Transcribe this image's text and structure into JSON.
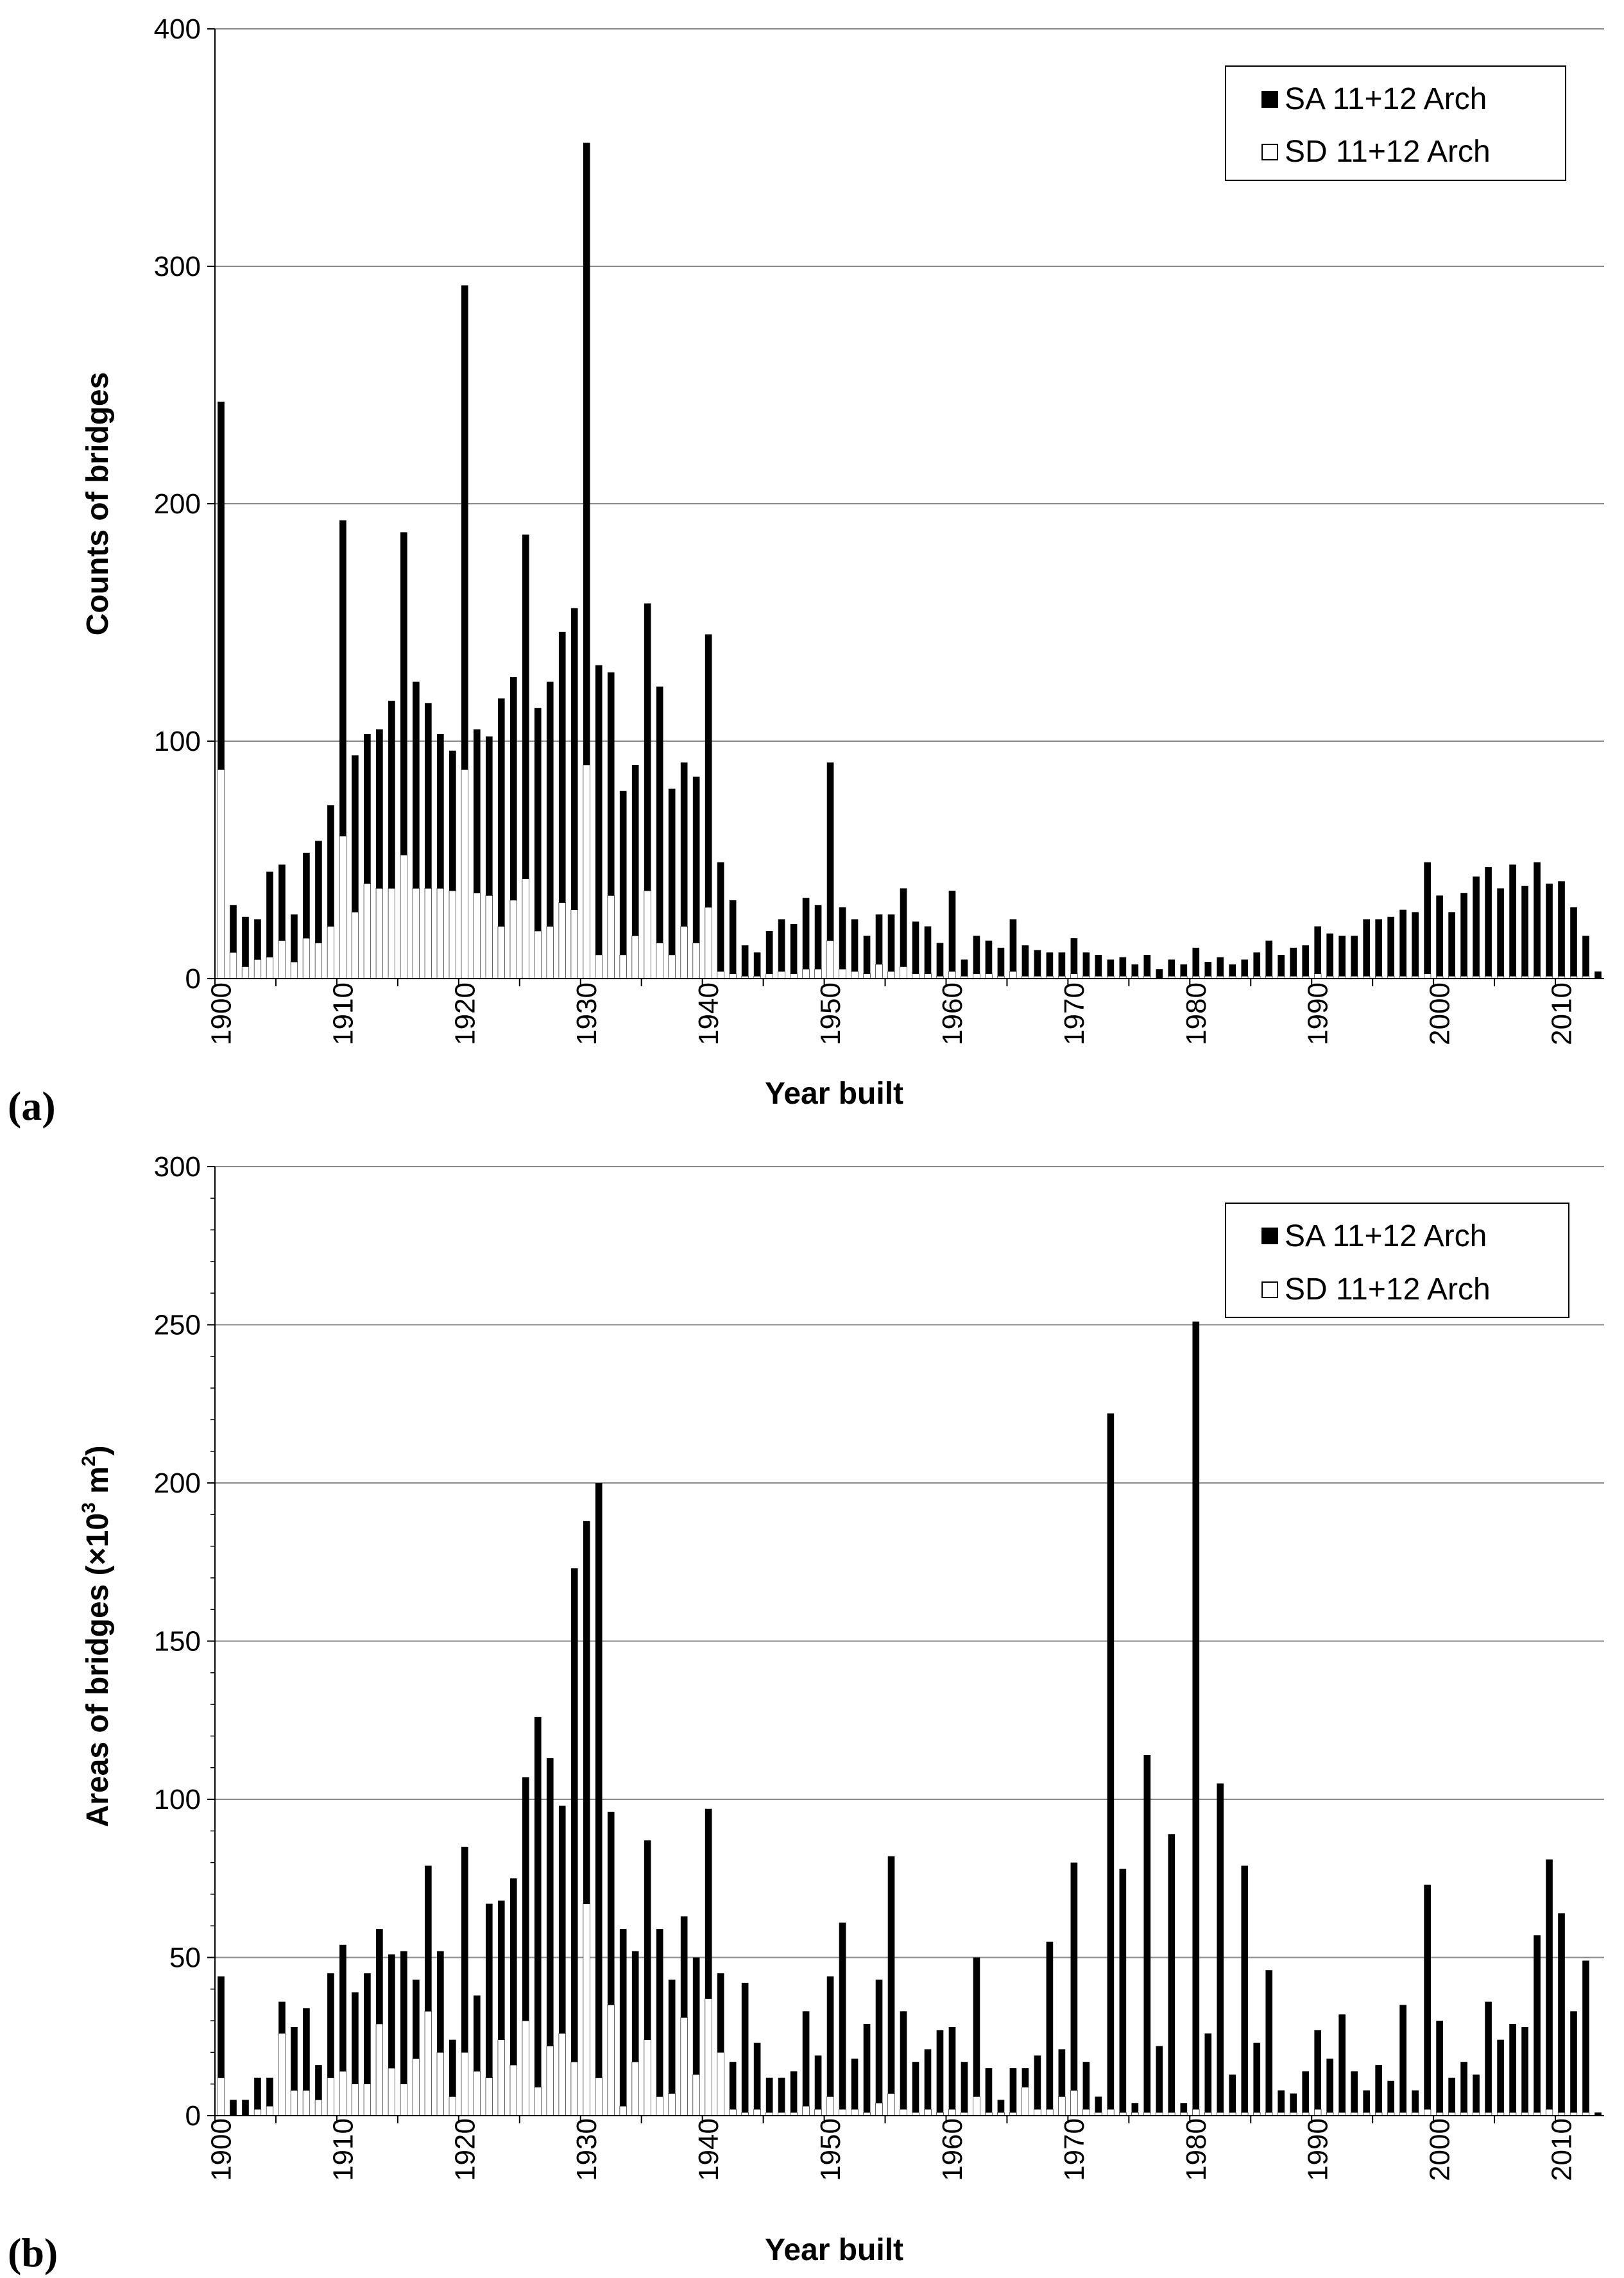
{
  "chart_data": [
    {
      "type": "bar",
      "panel_label": "(a)",
      "xlabel": "Year built",
      "ylabel": "Counts of bridges",
      "ylim": [
        0,
        400
      ],
      "yticks": [
        0,
        100,
        200,
        300,
        400
      ],
      "yticks_text": [
        "0",
        "100",
        "200",
        "300",
        "400"
      ],
      "xticks_text": [
        "1900",
        "1910",
        "1920",
        "1930",
        "1940",
        "1950",
        "1960",
        "1970",
        "1980",
        "1990",
        "2000",
        "2010"
      ],
      "legend_position": "top-right",
      "grid": "horizontal",
      "year_start": 1900,
      "series": [
        {
          "name": "SA 11+12 Arch",
          "fill": "#000000",
          "values": [
            243,
            31,
            26,
            25,
            45,
            48,
            27,
            53,
            58,
            73,
            193,
            94,
            103,
            105,
            117,
            188,
            125,
            116,
            103,
            96,
            292,
            105,
            102,
            118,
            127,
            187,
            114,
            125,
            146,
            156,
            352,
            132,
            129,
            79,
            90,
            158,
            123,
            80,
            91,
            85,
            145,
            49,
            33,
            14,
            11,
            20,
            25,
            23,
            34,
            31,
            91,
            30,
            25,
            18,
            27,
            27,
            38,
            24,
            22,
            15,
            37,
            8,
            18,
            16,
            13,
            25,
            14,
            12,
            11,
            11,
            17,
            11,
            10,
            8,
            9,
            6,
            10,
            4,
            8,
            6,
            13,
            7,
            9,
            6,
            8,
            11,
            16,
            10,
            13,
            14,
            22,
            19,
            18,
            18,
            25,
            25,
            26,
            29,
            28,
            49,
            35,
            28,
            36,
            43,
            47,
            38,
            48,
            39,
            49,
            40,
            41,
            30,
            18,
            3
          ]
        },
        {
          "name": "SD 11+12 Arch",
          "fill": "#ffffff",
          "values": [
            88,
            11,
            5,
            8,
            9,
            16,
            7,
            17,
            15,
            22,
            60,
            28,
            40,
            38,
            38,
            52,
            38,
            38,
            38,
            37,
            88,
            36,
            35,
            22,
            33,
            42,
            20,
            22,
            32,
            29,
            90,
            10,
            35,
            10,
            18,
            37,
            15,
            10,
            22,
            15,
            30,
            3,
            2,
            1,
            1,
            2,
            3,
            2,
            4,
            4,
            16,
            4,
            3,
            2,
            6,
            3,
            5,
            2,
            2,
            1,
            3,
            1,
            2,
            2,
            1,
            3,
            1,
            1,
            1,
            1,
            2,
            1,
            1,
            1,
            1,
            1,
            1,
            0,
            1,
            1,
            1,
            1,
            1,
            1,
            1,
            1,
            1,
            1,
            1,
            1,
            2,
            1,
            1,
            1,
            1,
            1,
            1,
            1,
            1,
            2,
            1,
            1,
            1,
            1,
            1,
            1,
            1,
            1,
            1,
            1,
            1,
            1,
            1,
            0
          ]
        }
      ]
    },
    {
      "type": "bar",
      "panel_label": "(b)",
      "xlabel": "Year built",
      "ylabel": "Areas of bridges (×10³ m²)",
      "ylabel_base": "Areas of bridges (×10",
      "ylabel_sup1": "3",
      "ylabel_mid": " m",
      "ylabel_sup2": "2",
      "ylabel_end": ")",
      "ylim": [
        0,
        300
      ],
      "yticks": [
        0,
        50,
        100,
        150,
        200,
        250,
        300
      ],
      "yticks_text": [
        "0",
        "50",
        "100",
        "150",
        "200",
        "250",
        "300"
      ],
      "xticks_text": [
        "1900",
        "1910",
        "1920",
        "1930",
        "1940",
        "1950",
        "1960",
        "1970",
        "1980",
        "1990",
        "2000",
        "2010"
      ],
      "legend_position": "top-right",
      "grid": "horizontal",
      "year_start": 1900,
      "series": [
        {
          "name": "SA 11+12 Arch",
          "fill": "#000000",
          "values": [
            44,
            5,
            5,
            12,
            12,
            36,
            28,
            34,
            16,
            45,
            54,
            39,
            45,
            59,
            51,
            52,
            43,
            79,
            52,
            24,
            85,
            38,
            67,
            68,
            75,
            107,
            126,
            113,
            98,
            173,
            188,
            200,
            96,
            59,
            52,
            87,
            59,
            43,
            63,
            50,
            97,
            45,
            17,
            42,
            23,
            12,
            12,
            14,
            33,
            19,
            44,
            61,
            18,
            29,
            43,
            82,
            33,
            17,
            21,
            27,
            28,
            17,
            50,
            15,
            5,
            15,
            15,
            19,
            55,
            21,
            80,
            17,
            6,
            222,
            78,
            4,
            114,
            22,
            89,
            4,
            251,
            26,
            105,
            13,
            79,
            23,
            46,
            8,
            7,
            14,
            27,
            18,
            32,
            14,
            8,
            16,
            11,
            35,
            8,
            73,
            30,
            12,
            17,
            13,
            36,
            24,
            29,
            28,
            57,
            81,
            64,
            33,
            49,
            1
          ]
        },
        {
          "name": "SD 11+12 Arch",
          "fill": "#ffffff",
          "values": [
            12,
            0,
            0,
            2,
            3,
            26,
            8,
            8,
            5,
            12,
            14,
            10,
            10,
            29,
            15,
            10,
            18,
            33,
            20,
            6,
            20,
            14,
            12,
            24,
            16,
            30,
            9,
            22,
            26,
            17,
            67,
            12,
            35,
            3,
            17,
            24,
            6,
            7,
            31,
            13,
            37,
            20,
            2,
            1,
            2,
            1,
            1,
            1,
            3,
            2,
            6,
            2,
            2,
            1,
            4,
            7,
            2,
            1,
            2,
            1,
            2,
            1,
            6,
            1,
            1,
            1,
            9,
            2,
            2,
            6,
            8,
            2,
            1,
            2,
            1,
            1,
            1,
            1,
            1,
            1,
            2,
            1,
            1,
            1,
            1,
            1,
            1,
            1,
            1,
            1,
            2,
            1,
            1,
            1,
            1,
            1,
            1,
            1,
            1,
            2,
            1,
            1,
            1,
            1,
            1,
            1,
            1,
            1,
            1,
            2,
            1,
            1,
            1,
            0
          ]
        }
      ]
    }
  ]
}
